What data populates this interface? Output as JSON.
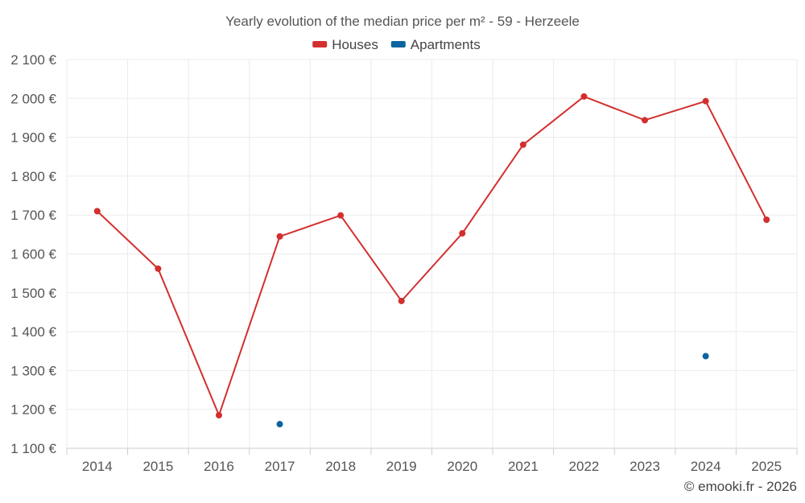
{
  "chart_data": {
    "type": "line",
    "title": "Yearly evolution of the median price per m² - 59 - Herzeele",
    "categories": [
      "2014",
      "2015",
      "2016",
      "2017",
      "2018",
      "2019",
      "2020",
      "2021",
      "2022",
      "2023",
      "2024",
      "2025"
    ],
    "y_ticks": [
      "1 100 €",
      "1 200 €",
      "1 300 €",
      "1 400 €",
      "1 500 €",
      "1 600 €",
      "1 700 €",
      "1 800 €",
      "1 900 €",
      "2 000 €",
      "2 100 €"
    ],
    "ylim": [
      1100,
      2100
    ],
    "legend_position": "top-center",
    "series": [
      {
        "name": "Houses",
        "color": "#d32f2f",
        "line": true,
        "values": [
          1710,
          1562,
          1185,
          1645,
          1699,
          1479,
          1653,
          1881,
          2005,
          1944,
          1993,
          1688
        ]
      },
      {
        "name": "Apartments",
        "color": "#0b64a0",
        "line": false,
        "values": [
          null,
          null,
          null,
          1162,
          null,
          null,
          null,
          null,
          null,
          null,
          1337,
          null
        ]
      }
    ]
  },
  "credit": "© emooki.fr - 2026"
}
